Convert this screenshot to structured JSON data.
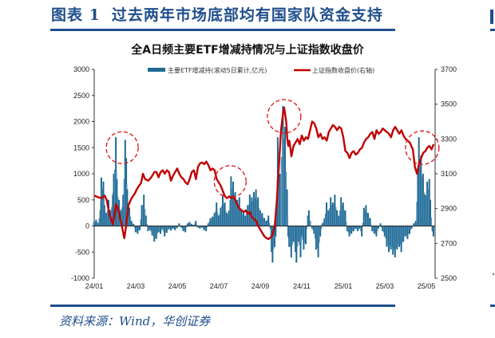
{
  "figure": {
    "number_label": "图表 1",
    "title": "过去两年市场底部均有国家队资金支持",
    "source": "资料来源：Wind，华创证券",
    "accent_color": "#1f4e8c"
  },
  "chart_data": {
    "type": "bar+line",
    "title": "全A日频主要ETF增减持情况与上证指数收盘价",
    "legend": [
      {
        "name": "主要ETF增减持(滚动5日累计,亿元)",
        "type": "bar",
        "color": "#1f6a94"
      },
      {
        "name": "上证指数收盘价(右轴)",
        "type": "line",
        "color": "#c00000"
      }
    ],
    "left_axis": {
      "min": -1000,
      "max": 3000,
      "ticks": [
        3000,
        2500,
        2000,
        1500,
        1000,
        500,
        0,
        -500,
        -1000
      ]
    },
    "right_axis": {
      "min": 2500,
      "max": 3700,
      "ticks": [
        3700,
        3500,
        3300,
        3100,
        2900,
        2700,
        2500
      ]
    },
    "x_ticks": [
      "24/01",
      "24/03",
      "24/05",
      "24/07",
      "24/09",
      "24/11",
      "25/01",
      "25/03",
      "25/05"
    ],
    "x_range_months": [
      0,
      16.5
    ],
    "bar_series": {
      "name": "主要ETF增减持(滚动5日累计,亿元)",
      "points": [
        [
          0.0,
          80
        ],
        [
          0.1,
          120
        ],
        [
          0.2,
          60
        ],
        [
          0.3,
          300
        ],
        [
          0.35,
          930
        ],
        [
          0.45,
          850
        ],
        [
          0.5,
          400
        ],
        [
          0.6,
          250
        ],
        [
          0.7,
          500
        ],
        [
          0.8,
          300
        ],
        [
          0.9,
          600
        ],
        [
          0.95,
          1000
        ],
        [
          1.05,
          1700
        ],
        [
          1.1,
          900
        ],
        [
          1.2,
          500
        ],
        [
          1.3,
          300
        ],
        [
          1.4,
          600
        ],
        [
          1.5,
          1650
        ],
        [
          1.55,
          1300
        ],
        [
          1.6,
          700
        ],
        [
          1.7,
          350
        ],
        [
          1.8,
          100
        ],
        [
          1.9,
          40
        ],
        [
          2.0,
          -120
        ],
        [
          2.1,
          -150
        ],
        [
          2.2,
          -80
        ],
        [
          2.3,
          400
        ],
        [
          2.4,
          600
        ],
        [
          2.5,
          200
        ],
        [
          2.6,
          -100
        ],
        [
          2.7,
          -80
        ],
        [
          2.8,
          -180
        ],
        [
          2.9,
          -300
        ],
        [
          3.0,
          -250
        ],
        [
          3.1,
          -120
        ],
        [
          3.2,
          -150
        ],
        [
          3.3,
          -60
        ],
        [
          3.4,
          -200
        ],
        [
          3.5,
          -130
        ],
        [
          3.6,
          -60
        ],
        [
          3.7,
          -90
        ],
        [
          3.8,
          -50
        ],
        [
          3.9,
          -80
        ],
        [
          4.0,
          -40
        ],
        [
          4.1,
          50
        ],
        [
          4.2,
          -30
        ],
        [
          4.3,
          -100
        ],
        [
          4.4,
          -120
        ],
        [
          4.5,
          50
        ],
        [
          4.6,
          80
        ],
        [
          4.7,
          40
        ],
        [
          4.8,
          20
        ],
        [
          4.9,
          100
        ],
        [
          5.0,
          -30
        ],
        [
          5.1,
          -50
        ],
        [
          5.2,
          -30
        ],
        [
          5.3,
          -80
        ],
        [
          5.4,
          -100
        ],
        [
          5.5,
          50
        ],
        [
          5.6,
          150
        ],
        [
          5.7,
          180
        ],
        [
          5.8,
          250
        ],
        [
          5.9,
          450
        ],
        [
          6.0,
          200
        ],
        [
          6.1,
          350
        ],
        [
          6.2,
          600
        ],
        [
          6.3,
          450
        ],
        [
          6.4,
          250
        ],
        [
          6.5,
          300
        ],
        [
          6.6,
          950
        ],
        [
          6.7,
          850
        ],
        [
          6.8,
          650
        ],
        [
          6.9,
          500
        ],
        [
          7.0,
          550
        ],
        [
          7.1,
          300
        ],
        [
          7.2,
          250
        ],
        [
          7.3,
          200
        ],
        [
          7.4,
          400
        ],
        [
          7.5,
          600
        ],
        [
          7.6,
          550
        ],
        [
          7.7,
          650
        ],
        [
          7.8,
          700
        ],
        [
          7.9,
          550
        ],
        [
          8.0,
          300
        ],
        [
          8.1,
          250
        ],
        [
          8.2,
          150
        ],
        [
          8.3,
          100
        ],
        [
          8.4,
          200
        ],
        [
          8.5,
          -50
        ],
        [
          8.55,
          -500
        ],
        [
          8.6,
          -700
        ],
        [
          8.7,
          -400
        ],
        [
          8.75,
          -200
        ],
        [
          8.8,
          500
        ],
        [
          8.85,
          1700
        ],
        [
          8.95,
          1000
        ],
        [
          9.1,
          2300
        ],
        [
          9.2,
          1900
        ],
        [
          9.3,
          700
        ],
        [
          9.35,
          -200
        ],
        [
          9.4,
          -400
        ],
        [
          9.5,
          -600
        ],
        [
          9.6,
          -300
        ],
        [
          9.7,
          -500
        ],
        [
          9.75,
          -700
        ],
        [
          9.85,
          -300
        ],
        [
          9.95,
          -600
        ],
        [
          10.0,
          -200
        ],
        [
          10.1,
          -450
        ],
        [
          10.2,
          -350
        ],
        [
          10.3,
          200
        ],
        [
          10.35,
          300
        ],
        [
          10.5,
          -50
        ],
        [
          10.6,
          -150
        ],
        [
          10.7,
          -450
        ],
        [
          10.8,
          -600
        ],
        [
          10.9,
          -200
        ],
        [
          11.0,
          50
        ],
        [
          11.1,
          150
        ],
        [
          11.2,
          450
        ],
        [
          11.3,
          300
        ],
        [
          11.4,
          550
        ],
        [
          11.5,
          450
        ],
        [
          11.6,
          600
        ],
        [
          11.7,
          300
        ],
        [
          11.8,
          200
        ],
        [
          11.9,
          550
        ],
        [
          12.0,
          450
        ],
        [
          12.1,
          300
        ],
        [
          12.2,
          -100
        ],
        [
          12.3,
          -200
        ],
        [
          12.4,
          -150
        ],
        [
          12.5,
          -100
        ],
        [
          12.6,
          -50
        ],
        [
          12.7,
          -100
        ],
        [
          12.8,
          -50
        ],
        [
          12.9,
          -200
        ],
        [
          13.0,
          350
        ],
        [
          13.1,
          400
        ],
        [
          13.2,
          250
        ],
        [
          13.3,
          150
        ],
        [
          13.4,
          -100
        ],
        [
          13.5,
          -150
        ],
        [
          13.6,
          -200
        ],
        [
          13.7,
          -50
        ],
        [
          13.8,
          50
        ],
        [
          13.9,
          -100
        ],
        [
          14.0,
          -200
        ],
        [
          14.1,
          -400
        ],
        [
          14.2,
          -500
        ],
        [
          14.3,
          -450
        ],
        [
          14.4,
          -550
        ],
        [
          14.5,
          -600
        ],
        [
          14.6,
          -450
        ],
        [
          14.7,
          -400
        ],
        [
          14.8,
          -500
        ],
        [
          14.9,
          -300
        ],
        [
          15.0,
          -200
        ],
        [
          15.1,
          -250
        ],
        [
          15.2,
          -150
        ],
        [
          15.3,
          -50
        ],
        [
          15.4,
          50
        ],
        [
          15.5,
          100
        ],
        [
          15.6,
          1050
        ],
        [
          15.65,
          1700
        ],
        [
          15.75,
          1350
        ],
        [
          15.85,
          1000
        ],
        [
          15.95,
          600
        ],
        [
          16.05,
          850
        ],
        [
          16.15,
          900
        ],
        [
          16.2,
          500
        ],
        [
          16.3,
          -100
        ],
        [
          16.35,
          -200
        ],
        [
          16.45,
          -150
        ],
        [
          16.55,
          -250
        ],
        [
          16.65,
          -100
        ],
        [
          16.75,
          -200
        ],
        [
          16.85,
          -250
        ],
        [
          16.95,
          -150
        ],
        [
          17.05,
          -250
        ],
        [
          17.15,
          -200
        ]
      ]
    },
    "line_series": {
      "name": "上证指数收盘价(右轴)",
      "points": [
        [
          0.0,
          2975
        ],
        [
          0.2,
          2965
        ],
        [
          0.35,
          2960
        ],
        [
          0.5,
          2975
        ],
        [
          0.6,
          2950
        ],
        [
          0.75,
          2860
        ],
        [
          0.9,
          2810
        ],
        [
          1.0,
          2880
        ],
        [
          1.05,
          2925
        ],
        [
          1.15,
          2900
        ],
        [
          1.3,
          2820
        ],
        [
          1.45,
          2730
        ],
        [
          1.55,
          2810
        ],
        [
          1.65,
          2920
        ],
        [
          1.8,
          2960
        ],
        [
          1.95,
          2985
        ],
        [
          2.05,
          3010
        ],
        [
          2.15,
          3030
        ],
        [
          2.25,
          3045
        ],
        [
          2.35,
          3100
        ],
        [
          2.45,
          3070
        ],
        [
          2.6,
          3060
        ],
        [
          2.75,
          3080
        ],
        [
          2.9,
          3110
        ],
        [
          3.0,
          3110
        ],
        [
          3.1,
          3080
        ],
        [
          3.2,
          3110
        ],
        [
          3.3,
          3120
        ],
        [
          3.4,
          3100
        ],
        [
          3.5,
          3120
        ],
        [
          3.6,
          3110
        ],
        [
          3.7,
          3060
        ],
        [
          3.8,
          3090
        ],
        [
          3.9,
          3110
        ],
        [
          4.0,
          3130
        ],
        [
          4.1,
          3100
        ],
        [
          4.2,
          3080
        ],
        [
          4.3,
          3070
        ],
        [
          4.4,
          3050
        ],
        [
          4.5,
          3040
        ],
        [
          4.6,
          3070
        ],
        [
          4.7,
          3110
        ],
        [
          4.8,
          3120
        ],
        [
          4.9,
          3070
        ],
        [
          5.0,
          3140
        ],
        [
          5.1,
          3160
        ],
        [
          5.2,
          3165
        ],
        [
          5.3,
          3155
        ],
        [
          5.4,
          3170
        ],
        [
          5.5,
          3150
        ],
        [
          5.6,
          3120
        ],
        [
          5.7,
          3130
        ],
        [
          5.8,
          3120
        ],
        [
          5.9,
          3070
        ],
        [
          6.0,
          3050
        ],
        [
          6.1,
          3030
        ],
        [
          6.2,
          3000
        ],
        [
          6.3,
          2970
        ],
        [
          6.4,
          2960
        ],
        [
          6.5,
          2970
        ],
        [
          6.6,
          2960
        ],
        [
          6.7,
          2970
        ],
        [
          6.8,
          2950
        ],
        [
          6.9,
          2920
        ],
        [
          7.0,
          2900
        ],
        [
          7.1,
          2890
        ],
        [
          7.2,
          2880
        ],
        [
          7.3,
          2890
        ],
        [
          7.4,
          2870
        ],
        [
          7.5,
          2880
        ],
        [
          7.6,
          2850
        ],
        [
          7.7,
          2840
        ],
        [
          7.8,
          2830
        ],
        [
          7.9,
          2800
        ],
        [
          8.0,
          2780
        ],
        [
          8.1,
          2760
        ],
        [
          8.2,
          2740
        ],
        [
          8.3,
          2730
        ],
        [
          8.4,
          2725
        ],
        [
          8.5,
          2735
        ],
        [
          8.6,
          2750
        ],
        [
          8.7,
          2800
        ],
        [
          8.8,
          2950
        ],
        [
          8.9,
          3150
        ],
        [
          9.0,
          3350
        ],
        [
          9.1,
          3450
        ],
        [
          9.15,
          3480
        ],
        [
          9.25,
          3400
        ],
        [
          9.3,
          3300
        ],
        [
          9.35,
          3260
        ],
        [
          9.4,
          3290
        ],
        [
          9.45,
          3250
        ],
        [
          9.5,
          3200
        ],
        [
          9.55,
          3230
        ],
        [
          9.6,
          3260
        ],
        [
          9.7,
          3280
        ],
        [
          9.8,
          3300
        ],
        [
          9.9,
          3270
        ],
        [
          10.0,
          3320
        ],
        [
          10.1,
          3290
        ],
        [
          10.2,
          3310
        ],
        [
          10.3,
          3300
        ],
        [
          10.4,
          3350
        ],
        [
          10.5,
          3400
        ],
        [
          10.6,
          3390
        ],
        [
          10.7,
          3360
        ],
        [
          10.8,
          3310
        ],
        [
          10.9,
          3330
        ],
        [
          11.0,
          3300
        ],
        [
          11.1,
          3310
        ],
        [
          11.2,
          3290
        ],
        [
          11.3,
          3340
        ],
        [
          11.4,
          3360
        ],
        [
          11.5,
          3380
        ],
        [
          11.6,
          3370
        ],
        [
          11.7,
          3350
        ],
        [
          11.8,
          3370
        ],
        [
          11.9,
          3360
        ],
        [
          12.0,
          3310
        ],
        [
          12.1,
          3230
        ],
        [
          12.2,
          3220
        ],
        [
          12.3,
          3190
        ],
        [
          12.4,
          3220
        ],
        [
          12.5,
          3230
        ],
        [
          12.6,
          3210
        ],
        [
          12.7,
          3220
        ],
        [
          12.8,
          3240
        ],
        [
          12.9,
          3250
        ],
        [
          13.0,
          3280
        ],
        [
          13.1,
          3300
        ],
        [
          13.2,
          3310
        ],
        [
          13.3,
          3330
        ],
        [
          13.4,
          3340
        ],
        [
          13.5,
          3300
        ],
        [
          13.6,
          3350
        ],
        [
          13.7,
          3330
        ],
        [
          13.8,
          3340
        ],
        [
          13.9,
          3360
        ],
        [
          14.0,
          3350
        ],
        [
          14.1,
          3340
        ],
        [
          14.2,
          3330
        ],
        [
          14.3,
          3310
        ],
        [
          14.4,
          3350
        ],
        [
          14.5,
          3370
        ],
        [
          14.6,
          3350
        ],
        [
          14.7,
          3330
        ],
        [
          14.8,
          3350
        ],
        [
          14.9,
          3320
        ],
        [
          15.0,
          3300
        ],
        [
          15.1,
          3290
        ],
        [
          15.2,
          3280
        ],
        [
          15.35,
          3240
        ],
        [
          15.45,
          3140
        ],
        [
          15.55,
          3100
        ],
        [
          15.65,
          3160
        ],
        [
          15.75,
          3190
        ],
        [
          15.85,
          3220
        ],
        [
          15.95,
          3230
        ],
        [
          16.05,
          3250
        ],
        [
          16.15,
          3260
        ],
        [
          16.25,
          3240
        ],
        [
          16.35,
          3270
        ],
        [
          16.45,
          3290
        ],
        [
          16.55,
          3300
        ],
        [
          16.65,
          3320
        ],
        [
          16.75,
          3340
        ],
        [
          16.85,
          3350
        ],
        [
          16.95,
          3380
        ],
        [
          17.05,
          3360
        ],
        [
          17.15,
          3370
        ]
      ]
    },
    "annotations": [
      {
        "type": "dashed-circle",
        "cx_month": 1.35,
        "cy_left": 1500,
        "r": 20,
        "color": "#e02020"
      },
      {
        "type": "dashed-circle",
        "cx_month": 6.55,
        "cy_left": 850,
        "r": 20,
        "color": "#e02020"
      },
      {
        "type": "dashed-circle",
        "cx_month": 9.15,
        "cy_left": 2100,
        "r": 21,
        "color": "#e02020"
      },
      {
        "type": "dashed-circle",
        "cx_month": 15.8,
        "cy_left": 1500,
        "r": 21,
        "color": "#e02020"
      }
    ],
    "xlabel": "",
    "ylabel_left": "",
    "ylabel_right": "",
    "grid": false,
    "legend_position": "top"
  }
}
